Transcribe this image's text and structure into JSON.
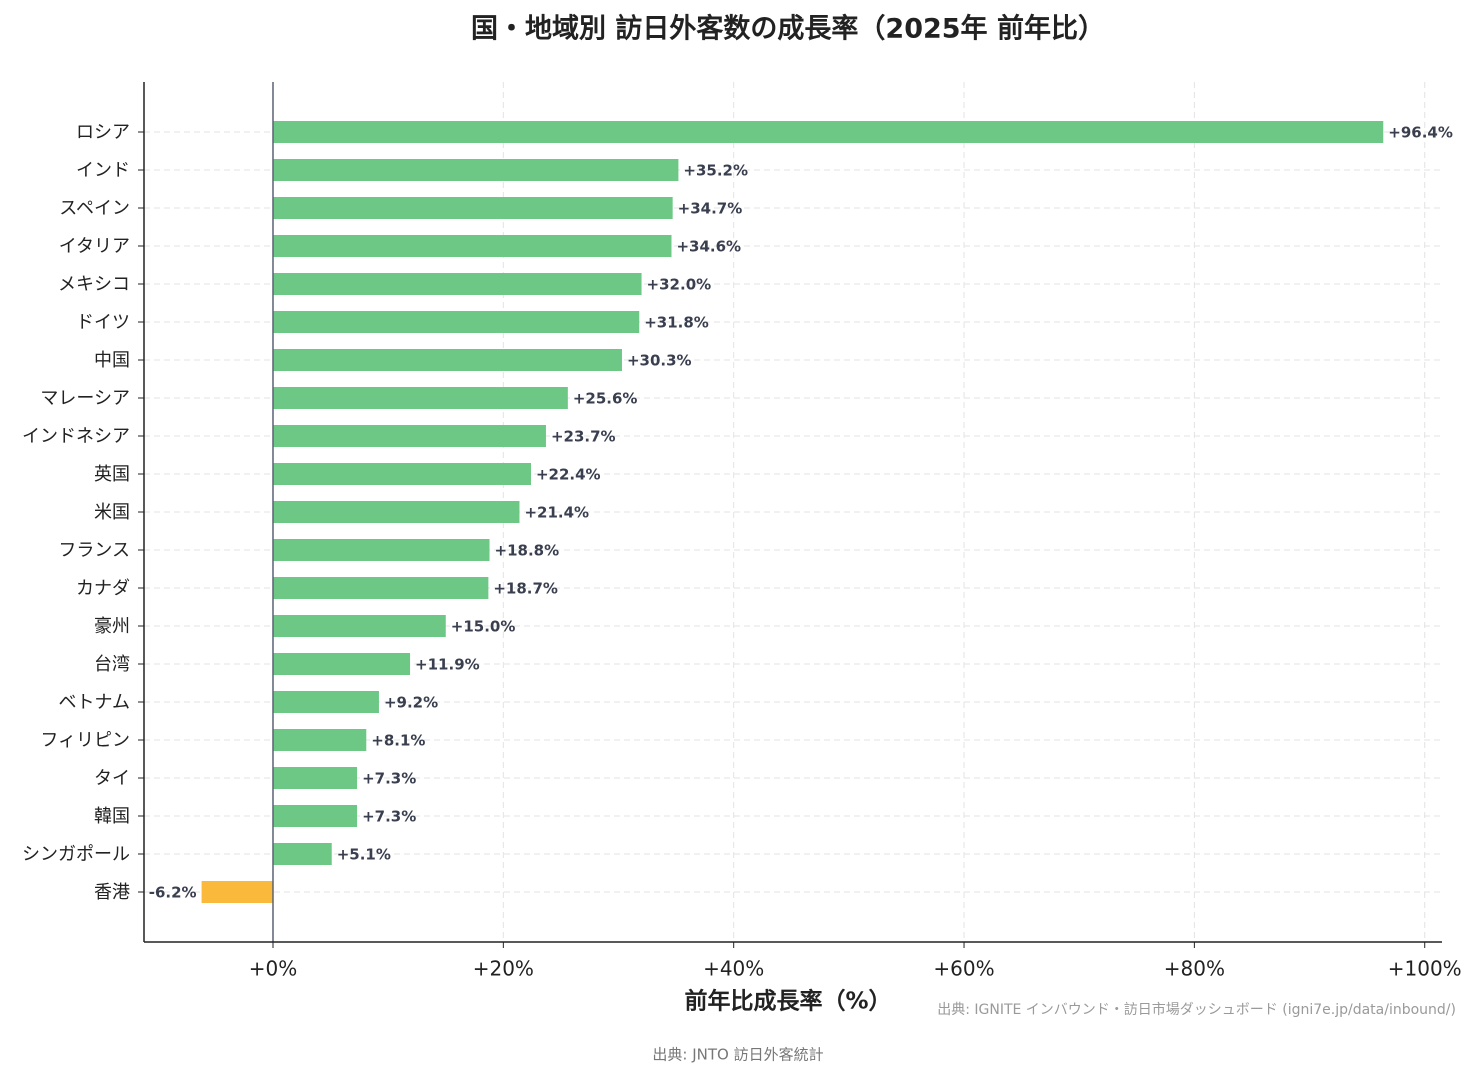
{
  "chart_data": {
    "type": "barh",
    "title": "国・地域別 訪日外客数の成長率（2025年 前年比）",
    "xlabel": "前年比成長率（%）",
    "source_note": "出典: IGNITE インバウンド・訪日市場ダッシュボード (igni7e.jp/data/inbound/)",
    "footer": "出典: JNTO 訪日外客統計",
    "categories": [
      "ロシア",
      "インド",
      "スペイン",
      "イタリア",
      "メキシコ",
      "ドイツ",
      "中国",
      "マレーシア",
      "インドネシア",
      "英国",
      "米国",
      "フランス",
      "カナダ",
      "豪州",
      "台湾",
      "ベトナム",
      "フィリピン",
      "タイ",
      "韓国",
      "シンガポール",
      "香港"
    ],
    "values": [
      96.4,
      35.2,
      34.7,
      34.6,
      32.0,
      31.8,
      30.3,
      25.6,
      23.7,
      22.4,
      21.4,
      18.8,
      18.7,
      15.0,
      11.9,
      9.2,
      8.1,
      7.3,
      7.3,
      5.1,
      -6.2
    ],
    "value_labels": [
      "+96.4%",
      "+35.2%",
      "+34.7%",
      "+34.6%",
      "+32.0%",
      "+31.8%",
      "+30.3%",
      "+25.6%",
      "+23.7%",
      "+22.4%",
      "+21.4%",
      "+18.8%",
      "+18.7%",
      "+15.0%",
      "+11.9%",
      "+9.2%",
      "+8.1%",
      "+7.3%",
      "+7.3%",
      "+5.1%",
      "-6.2%"
    ],
    "colors": [
      "#6dc785",
      "#6dc785",
      "#6dc785",
      "#6dc785",
      "#6dc785",
      "#6dc785",
      "#6dc785",
      "#6dc785",
      "#6dc785",
      "#6dc785",
      "#6dc785",
      "#6dc785",
      "#6dc785",
      "#6dc785",
      "#6dc785",
      "#6dc785",
      "#6dc785",
      "#6dc785",
      "#6dc785",
      "#6dc785",
      "#fbb93c"
    ],
    "xlim": [
      -11.2,
      101.5
    ],
    "xticks": [
      {
        "value": 0,
        "label": "+0%"
      },
      {
        "value": 20,
        "label": "+20%"
      },
      {
        "value": 40,
        "label": "+40%"
      },
      {
        "value": 60,
        "label": "+60%"
      },
      {
        "value": 80,
        "label": "+80%"
      },
      {
        "value": 100,
        "label": "+100%"
      }
    ],
    "grid": true
  }
}
